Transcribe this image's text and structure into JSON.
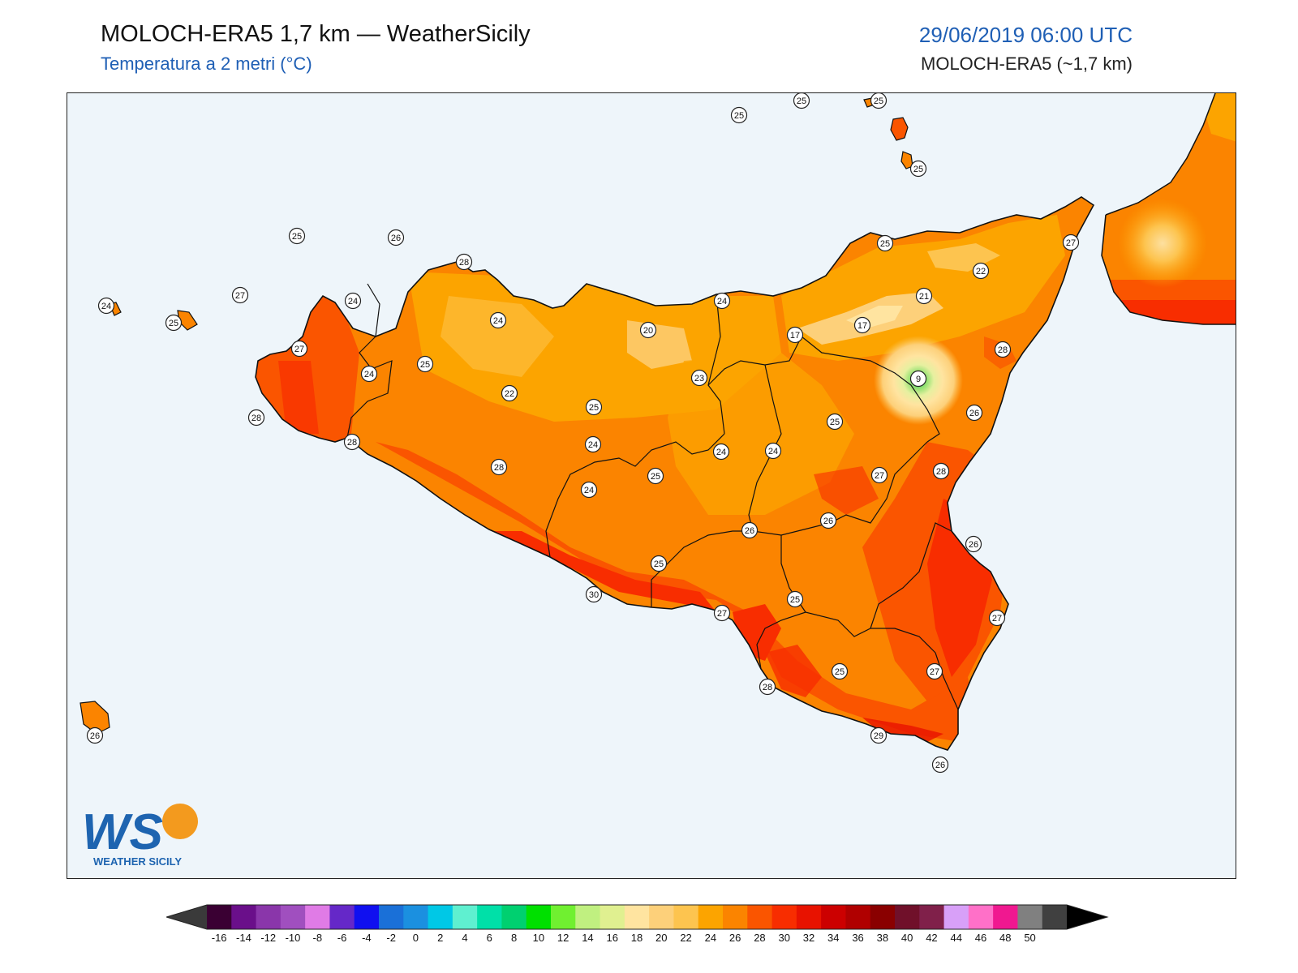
{
  "header": {
    "title": "MOLOCH-ERA5 1,7 km — WeatherSicily",
    "subtitle": "Temperatura a 2 metri (°C)",
    "datetime": "29/06/2019 06:00 UTC",
    "model": "MOLOCH-ERA5 (~1,7 km)"
  },
  "colors": {
    "sea": "#eef5fa",
    "accent": "#1f5fb5",
    "t20": "#fdc44f",
    "t22": "#fca400",
    "t24": "#fb8400",
    "t26": "#fa5500",
    "t28": "#f82d00",
    "t30": "#e81200"
  },
  "logo": {
    "text": "WS",
    "caption": "WEATHER SICILY"
  },
  "station_labels": [
    {
      "value": "25"
    },
    {
      "value": "25"
    },
    {
      "value": "25"
    },
    {
      "value": "25"
    },
    {
      "value": "25"
    },
    {
      "value": "26"
    },
    {
      "value": "28"
    },
    {
      "value": "24"
    },
    {
      "value": "27"
    },
    {
      "value": "24"
    },
    {
      "value": "25"
    },
    {
      "value": "24"
    },
    {
      "value": "27"
    },
    {
      "value": "24"
    },
    {
      "value": "25"
    },
    {
      "value": "24"
    },
    {
      "value": "28"
    },
    {
      "value": "22"
    },
    {
      "value": "20"
    },
    {
      "value": "24"
    },
    {
      "value": "25"
    },
    {
      "value": "22"
    },
    {
      "value": "27"
    },
    {
      "value": "21"
    },
    {
      "value": "17"
    },
    {
      "value": "17"
    },
    {
      "value": "28"
    },
    {
      "value": "9"
    },
    {
      "value": "23"
    },
    {
      "value": "25"
    },
    {
      "value": "24"
    },
    {
      "value": "26"
    },
    {
      "value": "28"
    },
    {
      "value": "25"
    },
    {
      "value": "24"
    },
    {
      "value": "27"
    },
    {
      "value": "28"
    },
    {
      "value": "24"
    },
    {
      "value": "28"
    },
    {
      "value": "25"
    },
    {
      "value": "26"
    },
    {
      "value": "26"
    },
    {
      "value": "26"
    },
    {
      "value": "28"
    },
    {
      "value": "25"
    },
    {
      "value": "25"
    },
    {
      "value": "30"
    },
    {
      "value": "27"
    },
    {
      "value": "27"
    },
    {
      "value": "25"
    },
    {
      "value": "27"
    },
    {
      "value": "28"
    },
    {
      "value": "29"
    },
    {
      "value": "26"
    },
    {
      "value": "26"
    }
  ],
  "colorbar": {
    "ticks": [
      "-16",
      "-14",
      "-12",
      "-10",
      "-8",
      "-6",
      "-4",
      "-2",
      "0",
      "2",
      "4",
      "6",
      "8",
      "10",
      "12",
      "14",
      "16",
      "18",
      "20",
      "22",
      "24",
      "26",
      "28",
      "30",
      "32",
      "34",
      "36",
      "38",
      "40",
      "42",
      "44",
      "46",
      "48",
      "50"
    ],
    "colors": [
      "#3a0033",
      "#6a0f8a",
      "#8a36aa",
      "#a04fbf",
      "#e07be6",
      "#6528c8",
      "#1010f0",
      "#1a70d8",
      "#1b90e0",
      "#00c8e6",
      "#5ff0d0",
      "#00e0a8",
      "#00d070",
      "#00e000",
      "#70f030",
      "#c0f080",
      "#e0f090",
      "#ffe4a0",
      "#fdd07a",
      "#fdc44f",
      "#fca400",
      "#fb8400",
      "#fa5500",
      "#f82d00",
      "#e81200",
      "#cc0000",
      "#b00000",
      "#8a0000",
      "#70102a",
      "#80204a",
      "#d8a0f8",
      "#ff70c8",
      "#f01890",
      "#808080",
      "#404040"
    ],
    "under_color": "#3a3a3a",
    "over_color": "#000000"
  }
}
